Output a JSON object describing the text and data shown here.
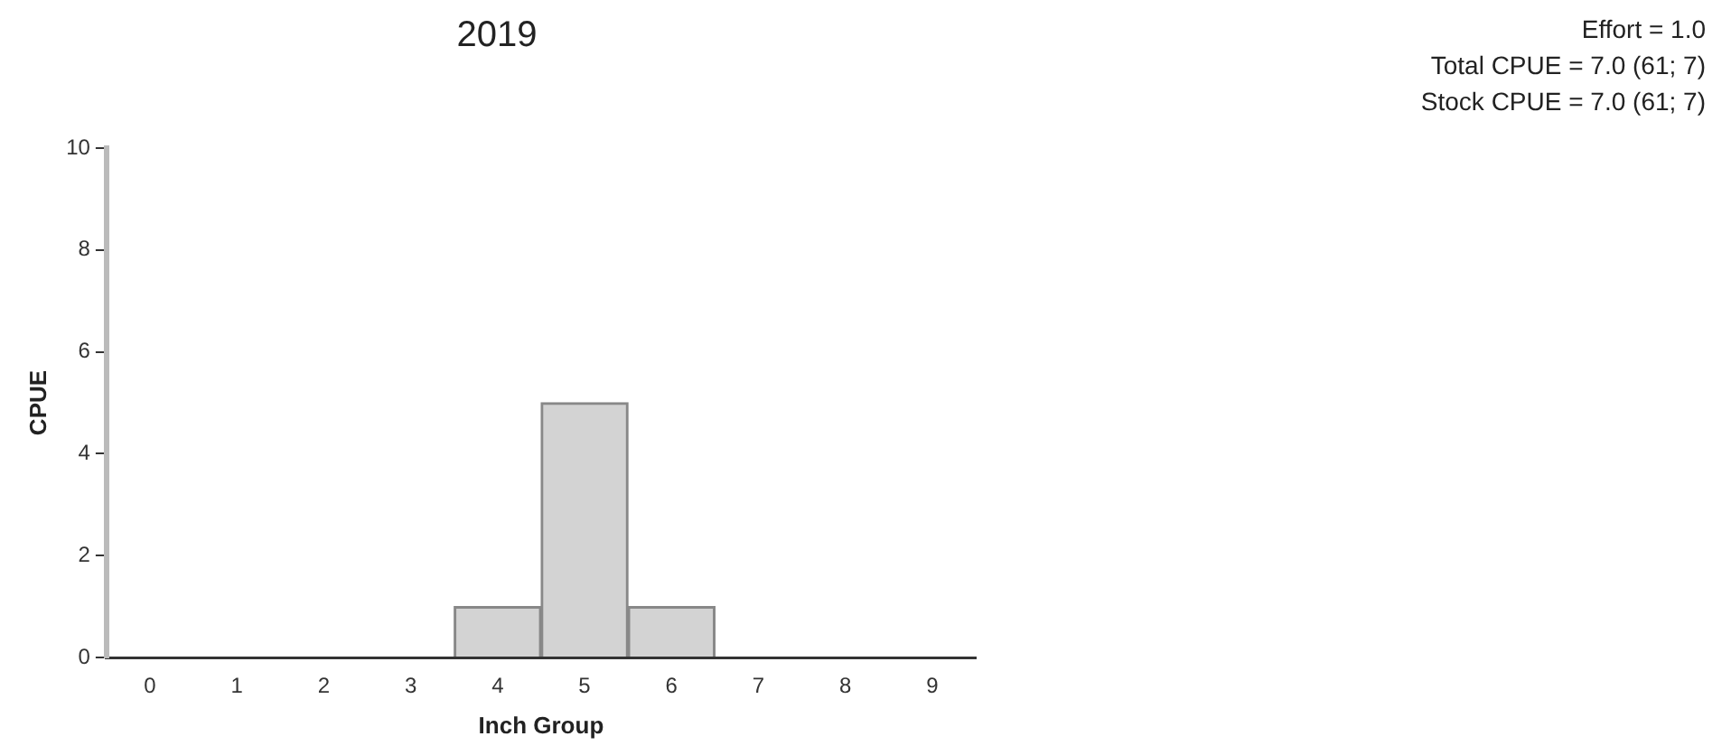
{
  "chart_data": {
    "type": "bar",
    "title": "2019",
    "xlabel": "Inch Group",
    "ylabel": "CPUE",
    "categories": [
      "0",
      "1",
      "2",
      "3",
      "4",
      "5",
      "6",
      "7",
      "8",
      "9"
    ],
    "values": [
      0,
      0,
      0,
      0,
      1,
      5,
      1,
      0,
      0,
      0
    ],
    "color": "#d3d3d3",
    "ylim": [
      0,
      10
    ],
    "yticks": [
      0,
      2,
      4,
      6,
      8,
      10
    ],
    "grid": false,
    "legend": false,
    "annotations": [
      "Effort = 1.0",
      "Total CPUE = 7.0 (61; 7)",
      "Stock CPUE = 7.0 (61; 7)"
    ]
  }
}
